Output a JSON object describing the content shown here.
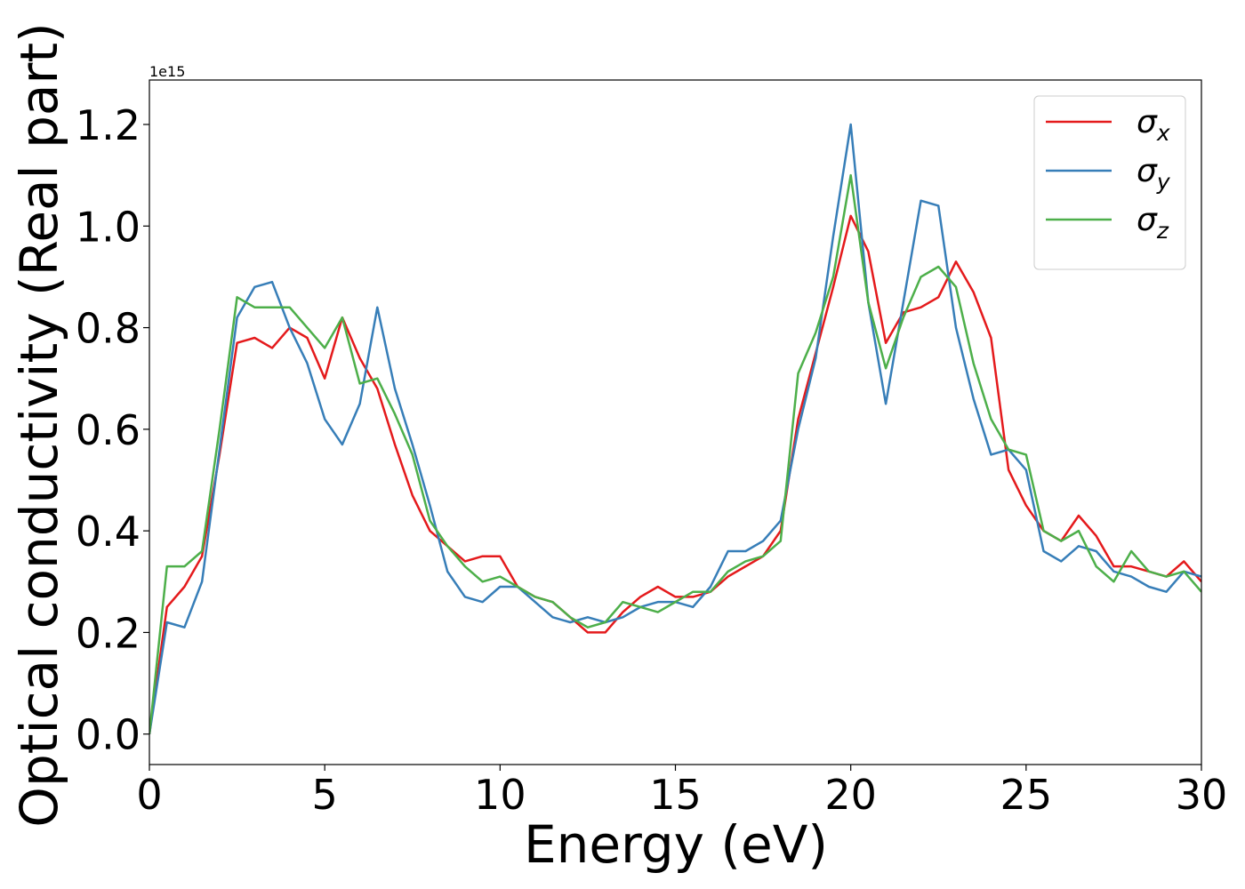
{
  "chart_data": {
    "type": "line",
    "xlabel": "Energy (eV)",
    "ylabel": "Optical conductivity (Real part)",
    "y_offset_label": "1e15",
    "x": [
      0,
      0.5,
      1,
      1.5,
      2,
      2.5,
      3,
      3.5,
      4,
      4.5,
      5,
      5.5,
      6,
      6.5,
      7,
      7.5,
      8,
      8.5,
      9,
      9.5,
      10,
      10.5,
      11,
      11.5,
      12,
      12.5,
      13,
      13.5,
      14,
      14.5,
      15,
      15.5,
      16,
      16.5,
      17,
      17.5,
      18,
      18.5,
      19,
      19.5,
      20,
      20.5,
      21,
      21.5,
      22,
      22.5,
      23,
      23.5,
      24,
      24.5,
      25,
      25.5,
      26,
      26.5,
      27,
      27.5,
      28,
      28.5,
      29,
      29.5,
      30
    ],
    "series": [
      {
        "name": "σx",
        "color": "#e41a1c",
        "values": [
          0,
          0.25,
          0.29,
          0.35,
          0.55,
          0.77,
          0.78,
          0.76,
          0.8,
          0.78,
          0.7,
          0.82,
          0.74,
          0.68,
          0.57,
          0.47,
          0.4,
          0.37,
          0.34,
          0.35,
          0.35,
          0.29,
          0.27,
          0.26,
          0.23,
          0.2,
          0.2,
          0.24,
          0.27,
          0.29,
          0.27,
          0.27,
          0.28,
          0.31,
          0.33,
          0.35,
          0.4,
          0.62,
          0.75,
          0.88,
          1.02,
          0.95,
          0.77,
          0.83,
          0.84,
          0.86,
          0.93,
          0.87,
          0.78,
          0.52,
          0.45,
          0.4,
          0.38,
          0.43,
          0.39,
          0.33,
          0.33,
          0.32,
          0.31,
          0.34,
          0.3
        ]
      },
      {
        "name": "σy",
        "color": "#377eb8",
        "values": [
          0,
          0.22,
          0.21,
          0.3,
          0.56,
          0.82,
          0.88,
          0.89,
          0.8,
          0.73,
          0.62,
          0.57,
          0.65,
          0.84,
          0.68,
          0.57,
          0.45,
          0.32,
          0.27,
          0.26,
          0.29,
          0.29,
          0.26,
          0.23,
          0.22,
          0.23,
          0.22,
          0.23,
          0.25,
          0.26,
          0.26,
          0.25,
          0.29,
          0.36,
          0.36,
          0.38,
          0.42,
          0.6,
          0.74,
          0.98,
          1.2,
          0.85,
          0.65,
          0.85,
          1.05,
          1.04,
          0.8,
          0.66,
          0.55,
          0.56,
          0.52,
          0.36,
          0.34,
          0.37,
          0.36,
          0.32,
          0.31,
          0.29,
          0.28,
          0.32,
          0.31
        ]
      },
      {
        "name": "σz",
        "color": "#4daf4a",
        "values": [
          0,
          0.33,
          0.33,
          0.36,
          0.6,
          0.86,
          0.84,
          0.84,
          0.84,
          0.8,
          0.76,
          0.82,
          0.69,
          0.7,
          0.63,
          0.55,
          0.42,
          0.37,
          0.33,
          0.3,
          0.31,
          0.29,
          0.27,
          0.26,
          0.23,
          0.21,
          0.22,
          0.26,
          0.25,
          0.24,
          0.26,
          0.28,
          0.28,
          0.32,
          0.34,
          0.35,
          0.38,
          0.71,
          0.79,
          0.9,
          1.1,
          0.85,
          0.72,
          0.82,
          0.9,
          0.92,
          0.88,
          0.73,
          0.62,
          0.56,
          0.55,
          0.4,
          0.38,
          0.4,
          0.33,
          0.3,
          0.36,
          0.32,
          0.31,
          0.32,
          0.28
        ]
      }
    ],
    "xlim": [
      0,
      30
    ],
    "xticks": [
      0,
      5,
      10,
      15,
      20,
      25,
      30
    ],
    "ylim": [
      -0.06,
      1.2875
    ],
    "yticks": [
      {
        "value": 0,
        "label": "0.0"
      },
      0.2,
      0.4,
      0.6,
      0.8,
      {
        "value": 1,
        "label": "1.0"
      },
      1.2
    ],
    "grid": false,
    "legend": "upper right"
  }
}
